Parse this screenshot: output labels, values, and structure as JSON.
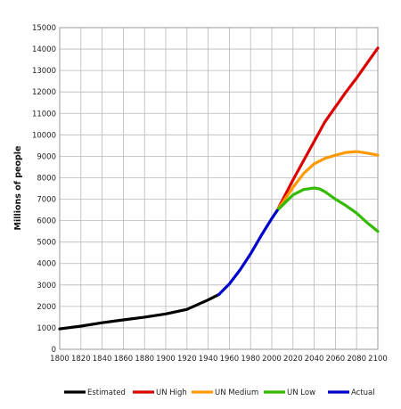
{
  "chart_data": {
    "type": "line",
    "title": "",
    "xlabel": "",
    "ylabel": "Millions of people",
    "xlim": [
      1800,
      2100
    ],
    "ylim": [
      0,
      15000
    ],
    "x_ticks": [
      "1800",
      "1820",
      "1840",
      "1860",
      "1880",
      "1900",
      "1920",
      "1940",
      "1960",
      "1980",
      "2000",
      "2020",
      "2040",
      "2060",
      "2080",
      "2100"
    ],
    "y_ticks": [
      "0",
      "1000",
      "2000",
      "3000",
      "4000",
      "5000",
      "6000",
      "7000",
      "8000",
      "9000",
      "10000",
      "11000",
      "12000",
      "13000",
      "14000",
      "15000"
    ],
    "grid": true,
    "legend_position": "bottom",
    "series": [
      {
        "name": "Estimated",
        "color": "#000000",
        "points": [
          [
            1800,
            950
          ],
          [
            1820,
            1080
          ],
          [
            1840,
            1240
          ],
          [
            1860,
            1370
          ],
          [
            1880,
            1500
          ],
          [
            1900,
            1650
          ],
          [
            1920,
            1860
          ],
          [
            1940,
            2300
          ],
          [
            1950,
            2550
          ]
        ]
      },
      {
        "name": "UN High",
        "color": "#dd0000",
        "points": [
          [
            2005,
            6470
          ],
          [
            2020,
            7900
          ],
          [
            2040,
            9700
          ],
          [
            2050,
            10600
          ],
          [
            2060,
            11300
          ],
          [
            2070,
            12000
          ],
          [
            2080,
            12650
          ],
          [
            2090,
            13350
          ],
          [
            2100,
            14050
          ]
        ]
      },
      {
        "name": "UN Medium",
        "color": "#ff9900",
        "points": [
          [
            2005,
            6470
          ],
          [
            2020,
            7550
          ],
          [
            2030,
            8200
          ],
          [
            2040,
            8650
          ],
          [
            2050,
            8900
          ],
          [
            2060,
            9050
          ],
          [
            2070,
            9180
          ],
          [
            2080,
            9220
          ],
          [
            2090,
            9150
          ],
          [
            2100,
            9050
          ]
        ]
      },
      {
        "name": "UN Low",
        "color": "#33bb00",
        "points": [
          [
            2005,
            6470
          ],
          [
            2020,
            7200
          ],
          [
            2030,
            7450
          ],
          [
            2040,
            7520
          ],
          [
            2045,
            7480
          ],
          [
            2050,
            7350
          ],
          [
            2060,
            7000
          ],
          [
            2070,
            6700
          ],
          [
            2080,
            6350
          ],
          [
            2090,
            5900
          ],
          [
            2100,
            5500
          ]
        ]
      },
      {
        "name": "Actual",
        "color": "#0000cc",
        "points": [
          [
            1950,
            2550
          ],
          [
            1960,
            3050
          ],
          [
            1970,
            3700
          ],
          [
            1980,
            4450
          ],
          [
            1990,
            5300
          ],
          [
            2000,
            6100
          ],
          [
            2005,
            6470
          ]
        ]
      }
    ]
  }
}
